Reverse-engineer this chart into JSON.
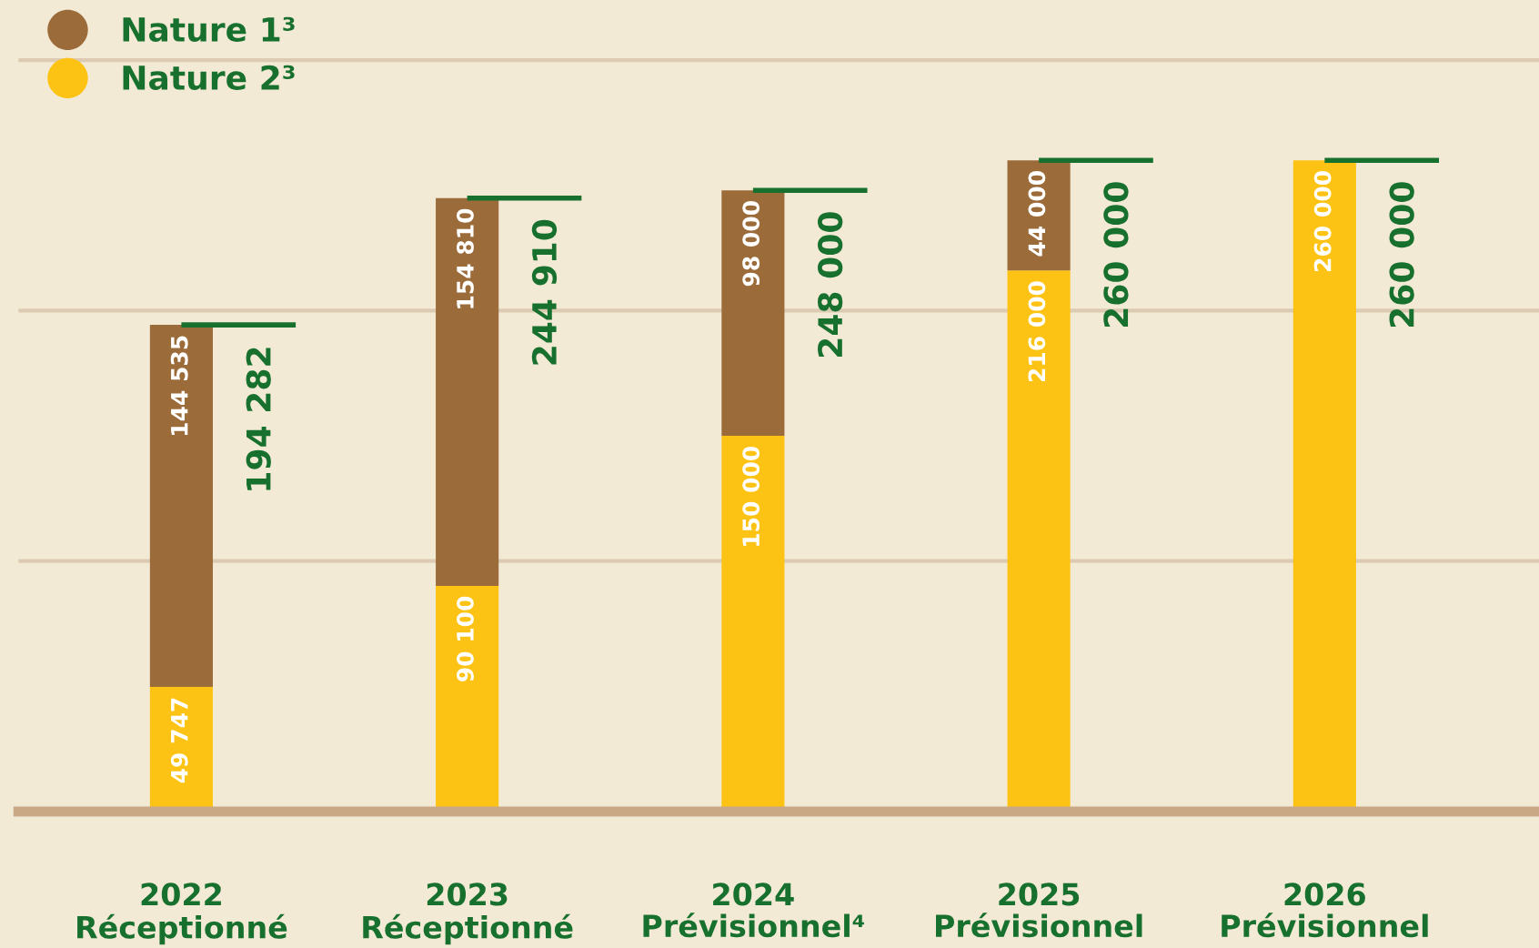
{
  "chart_data": {
    "type": "bar",
    "stacked": true,
    "categories": [
      "2022\nRéceptionné",
      "2023\nRéceptionné",
      "2024\nPrévisionnel⁴",
      "2025\nPrévisionnel",
      "2026\nPrévisionnel"
    ],
    "series": [
      {
        "name": "Nature 2³",
        "color": "#fdc314",
        "values": [
          49747,
          90100,
          150000,
          216000,
          260000
        ],
        "value_labels": [
          "49 747",
          "90 100",
          "150 000",
          "216 000",
          "260 000"
        ]
      },
      {
        "name": "Nature 1³",
        "color": "#9c6b3a",
        "values": [
          144535,
          154810,
          98000,
          44000,
          null
        ],
        "value_labels": [
          "144 535",
          "154 810",
          "98 000",
          "44 000",
          null
        ]
      }
    ],
    "totals": [
      "194 282",
      "244 910",
      "248 000",
      "260 000",
      "260 000"
    ],
    "ylim": [
      0,
      324000
    ],
    "yticks": [
      {
        "value": 100000,
        "label": null
      },
      {
        "value": 200000,
        "label": null
      },
      {
        "value": 300000,
        "label": null
      }
    ],
    "tick_labels": "x",
    "grid": "y",
    "legend": "top left"
  }
}
